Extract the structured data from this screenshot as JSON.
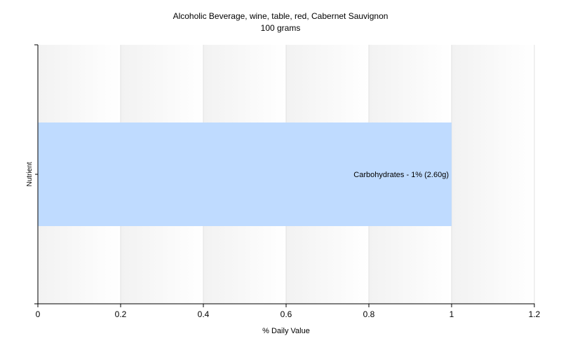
{
  "chart_data": {
    "type": "bar",
    "orientation": "horizontal",
    "title": "Alcoholic Beverage, wine, table, red, Cabernet Sauvignon",
    "subtitle": "100 grams",
    "xlabel": "% Daily Value",
    "ylabel": "Nutrient",
    "xlim": [
      0,
      1.2
    ],
    "xticks": [
      "0",
      "0.2",
      "0.4",
      "0.6",
      "0.8",
      "1",
      "1.2"
    ],
    "grid": true,
    "categories": [
      "Carbohydrates"
    ],
    "values": [
      1
    ],
    "data_labels": [
      "Carbohydrates - 1% (2.60g)"
    ],
    "bar_color": "#bfdbff"
  }
}
